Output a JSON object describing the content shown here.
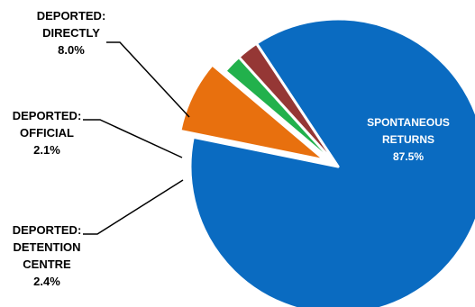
{
  "chart_data": {
    "type": "pie",
    "title": "",
    "legend": "none",
    "series": [
      {
        "name": "",
        "slices": [
          {
            "label_lines": [
              "SPONTANEOUS",
              "RETURNS"
            ],
            "value": 87.5,
            "value_label": "87.5%",
            "color": "#0A6BC1",
            "label_color": "#FFFFFF",
            "exploded": false
          },
          {
            "label_lines": [
              "DEPORTED:",
              "DIRECTLY"
            ],
            "value": 8.0,
            "value_label": "8.0%",
            "color": "#E8700E",
            "label_color": "#000000",
            "exploded": true
          },
          {
            "label_lines": [
              "DEPORTED:",
              "OFFICIAL"
            ],
            "value": 2.1,
            "value_label": "2.1%",
            "color": "#22B14C",
            "label_color": "#000000",
            "exploded": false
          },
          {
            "label_lines": [
              "DEPORTED:",
              "DETENTION",
              "CENTRE"
            ],
            "value": 2.4,
            "value_label": "2.4%",
            "color": "#953735",
            "label_color": "#000000",
            "exploded": false
          }
        ]
      }
    ]
  }
}
